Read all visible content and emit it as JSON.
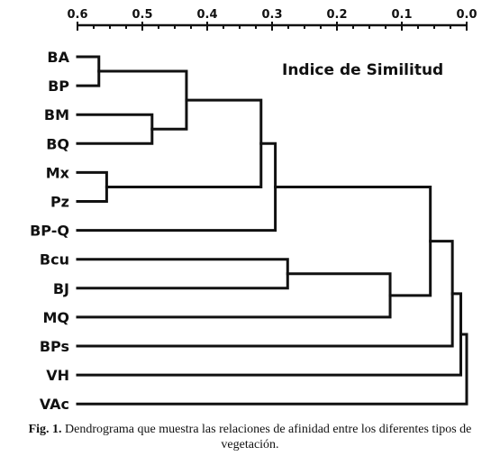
{
  "chart_data": {
    "type": "dendrogram",
    "title": "Indice de Similitud",
    "axis": {
      "ticks": [
        0.6,
        0.5,
        0.4,
        0.3,
        0.2,
        0.1,
        0.0
      ],
      "tick_labels": [
        "0.6",
        "0.5",
        "0.4",
        "0.3",
        "0.2",
        "0.1",
        "0.0"
      ],
      "range": [
        0.6,
        0.0
      ],
      "position": "top"
    },
    "leaves": [
      "BA",
      "BP",
      "BM",
      "BQ",
      "Mx",
      "Pz",
      "BP-Q",
      "Bcu",
      "BJ",
      "MQ",
      "BPs",
      "VH",
      "VAc"
    ],
    "merges": [
      {
        "left": "BA",
        "right": "BP",
        "height": 0.567
      },
      {
        "left": "BM",
        "right": "BQ",
        "height": 0.485
      },
      {
        "left": "Mx",
        "right": "Pz",
        "height": 0.555
      },
      {
        "left": "BA+BP",
        "right": "BM+BQ",
        "height": 0.432
      },
      {
        "left": "BA+BP+BM+BQ",
        "right": "Mx+Pz",
        "height": 0.317
      },
      {
        "left": "BA..Pz",
        "right": "BP-Q",
        "height": 0.295
      },
      {
        "left": "Bcu",
        "right": "BJ",
        "height": 0.276
      },
      {
        "left": "Bcu+BJ",
        "right": "MQ",
        "height": 0.118
      },
      {
        "left": "BA..BP-Q",
        "right": "Bcu+BJ+MQ",
        "height": 0.056
      },
      {
        "left": "BA..MQ",
        "right": "BPs",
        "height": 0.022
      },
      {
        "left": "BA..BPs",
        "right": "VH",
        "height": 0.009
      },
      {
        "left": "BA..VH",
        "right": "VAc",
        "height": 0.0
      }
    ]
  },
  "caption": {
    "label": "Fig. 1.",
    "text": " Dendrograma que muestra las relaciones de afinidad entre los diferentes tipos de vegetación."
  }
}
